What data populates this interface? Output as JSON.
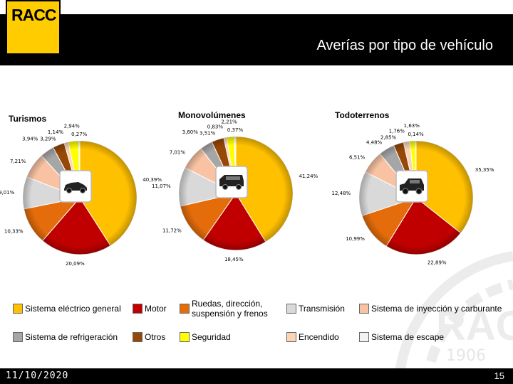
{
  "logo": {
    "text": "RACC"
  },
  "title": "Averías por tipo de vehículo",
  "watermark": {
    "text": "RACC",
    "year": "1906"
  },
  "footer": {
    "date": "11/10/2020",
    "page": "15"
  },
  "colors": {
    "Sistema eléctrico general": "#ffc000",
    "Motor": "#c00000",
    "Ruedas, dirección, suspensión y frenos": "#e46c0a",
    "Transmisión": "#d9d9d9",
    "Sistema de inyección y carburante": "#f9c3a3",
    "Sistema de refrigeración": "#a6a6a6",
    "Otros": "#974706",
    "Seguridad": "#ffff00",
    "Encendido": "#fbd4b4",
    "Sistema de escape": "#f2f2f2"
  },
  "legend": [
    {
      "label": "Sistema eléctrico general",
      "color": "#ffc000"
    },
    {
      "label": "Motor",
      "color": "#c00000"
    },
    {
      "label": "Ruedas, dirección, suspensión y frenos",
      "color": "#e46c0a"
    },
    {
      "label": "Transmisión",
      "color": "#d9d9d9"
    },
    {
      "label": "Sistema de inyección y carburante",
      "color": "#f9c3a3"
    },
    {
      "label": "Sistema de refrigeración",
      "color": "#a6a6a6"
    },
    {
      "label": "Otros",
      "color": "#974706"
    },
    {
      "label": "Seguridad",
      "color": "#ffff00"
    },
    {
      "label": "Encendido",
      "color": "#fbd4b4"
    },
    {
      "label": "Sistema de escape",
      "color": "#f2f2f2"
    }
  ],
  "chart_data": [
    {
      "type": "pie",
      "title": "Turismos",
      "icon": "car-icon",
      "slices": [
        {
          "category": "Sistema eléctrico general",
          "value": 40.39,
          "label": "40,39%"
        },
        {
          "category": "Motor",
          "value": 20.09,
          "label": "20,09%"
        },
        {
          "category": "Ruedas, dirección, suspensión y frenos",
          "value": 10.33,
          "label": "10,33%"
        },
        {
          "category": "Transmisión",
          "value": 9.01,
          "label": "9,01%"
        },
        {
          "category": "Sistema de inyección y carburante",
          "value": 7.21,
          "label": "7,21%"
        },
        {
          "category": "Sistema de refrigeración",
          "value": 3.94,
          "label": "3,94%"
        },
        {
          "category": "Otros",
          "value": 3.29,
          "label": "3,29%"
        },
        {
          "category": "Encendido",
          "value": 1.14,
          "label": "1,14%"
        },
        {
          "category": "Seguridad",
          "value": 2.94,
          "label": "2,94%"
        },
        {
          "category": "Sistema de escape",
          "value": 0.27,
          "label": "0,27%"
        }
      ]
    },
    {
      "type": "pie",
      "title": "Monovolúmenes",
      "icon": "van-icon",
      "slices": [
        {
          "category": "Sistema eléctrico general",
          "value": 41.24,
          "label": "41,24%"
        },
        {
          "category": "Motor",
          "value": 18.45,
          "label": "18,45%"
        },
        {
          "category": "Ruedas, dirección, suspensión y frenos",
          "value": 11.72,
          "label": "11,72%"
        },
        {
          "category": "Transmisión",
          "value": 11.07,
          "label": "11,07%"
        },
        {
          "category": "Sistema de inyección y carburante",
          "value": 7.01,
          "label": "7,01%"
        },
        {
          "category": "Sistema de refrigeración",
          "value": 3.6,
          "label": "3,60%"
        },
        {
          "category": "Otros",
          "value": 3.51,
          "label": "3,51%"
        },
        {
          "category": "Encendido",
          "value": 0.83,
          "label": "0,83%"
        },
        {
          "category": "Seguridad",
          "value": 2.21,
          "label": "2,21%"
        },
        {
          "category": "Sistema de escape",
          "value": 0.37,
          "label": "0,37%"
        }
      ]
    },
    {
      "type": "pie",
      "title": "Todoterrenos",
      "icon": "suv-icon",
      "slices": [
        {
          "category": "Sistema eléctrico general",
          "value": 35.35,
          "label": "35,35%"
        },
        {
          "category": "Motor",
          "value": 22.89,
          "label": "22,89%"
        },
        {
          "category": "Ruedas, dirección, suspensión y frenos",
          "value": 10.99,
          "label": "10,99%"
        },
        {
          "category": "Transmisión",
          "value": 12.48,
          "label": "12,48%"
        },
        {
          "category": "Sistema de inyección y carburante",
          "value": 6.51,
          "label": "6,51%"
        },
        {
          "category": "Sistema de refrigeración",
          "value": 4.48,
          "label": "4,48%"
        },
        {
          "category": "Otros",
          "value": 2.85,
          "label": "2,85%"
        },
        {
          "category": "Encendido",
          "value": 1.76,
          "label": "1,76%"
        },
        {
          "category": "Seguridad",
          "value": 1.63,
          "label": "1,63%"
        },
        {
          "category": "Sistema de escape",
          "value": 0.14,
          "label": "0,14%"
        }
      ]
    }
  ]
}
